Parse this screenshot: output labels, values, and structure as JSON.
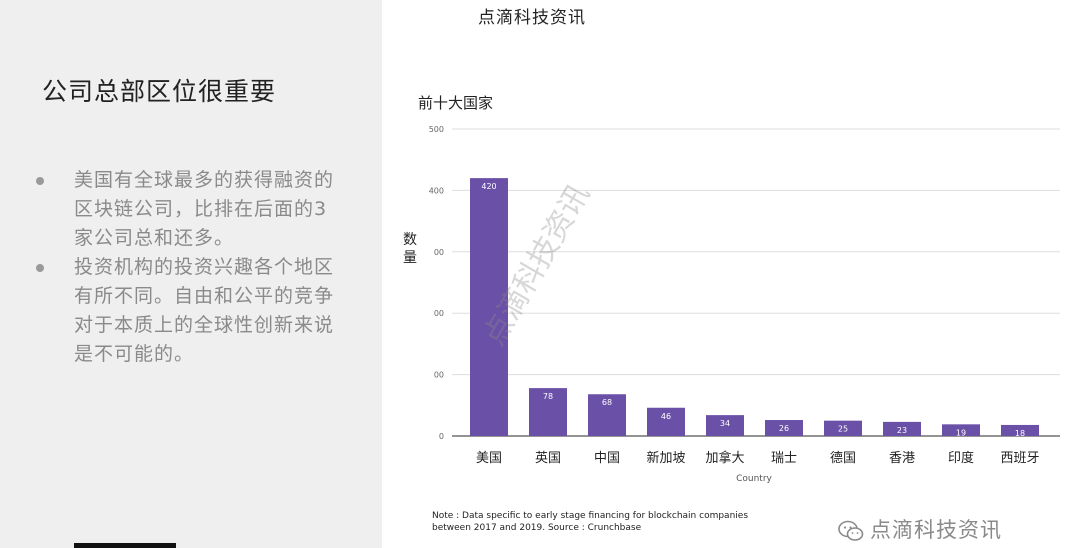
{
  "header": {
    "title": "点滴科技资讯"
  },
  "slide": {
    "title": "公司总部区位很重要",
    "bullets": [
      "美国有全球最多的获得融资的区块链公司，比排在后面的3家公司总和还多。",
      "投资机构的投资兴趣各个地区有所不同。自由和公平的竞争对于本质上的全球性创新来说是不可能的。"
    ]
  },
  "chart_data": {
    "type": "bar",
    "title": "前十大国家",
    "xlabel": "Country",
    "ylabel": "数量",
    "categories": [
      "美国",
      "英国",
      "中国",
      "新加坡",
      "加拿大",
      "瑞士",
      "德国",
      "香港",
      "印度",
      "西班牙"
    ],
    "values": [
      420,
      78,
      68,
      46,
      34,
      26,
      25,
      23,
      19,
      18
    ],
    "ylim": [
      0,
      500
    ],
    "yticks": [
      "0",
      "00",
      "00",
      "00",
      "400",
      "500"
    ],
    "grid": true,
    "bar_color": "#6a50a7",
    "watermark": "点滴科技资讯"
  },
  "note": "Note : Data specific to early stage financing for blockchain companies between 2017 and 2019. Source : Crunchbase",
  "watermark_bottom": "点滴科技资讯",
  "colors": {
    "left_panel": "#efefef",
    "bar": "#6a50a7",
    "text_gray": "#8a8a8a"
  }
}
